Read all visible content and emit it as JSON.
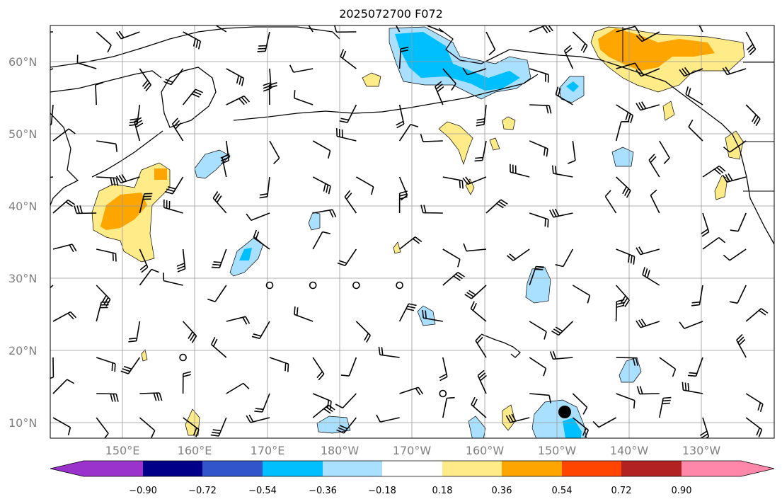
{
  "title": "2025072700 F072",
  "lat_labels": [
    "60°N",
    "50°N",
    "40°N",
    "30°N",
    "20°N",
    "10°N"
  ],
  "lon_labels": [
    "150°E",
    "160°E",
    "170°E",
    "180°W",
    "170°W",
    "160°W",
    "150°W",
    "140°W",
    "130°W"
  ],
  "colorbar": {
    "labels": [
      "−0.90",
      "−0.72",
      "−0.54",
      "−0.36",
      "−0.18",
      "0.18",
      "0.36",
      "0.54",
      "0.72",
      "0.90"
    ],
    "colors": [
      "#9933cc",
      "#000088",
      "#3355cc",
      "#00bfff",
      "#aae0ff",
      "#ffffff",
      "#ffeb88",
      "#ffa500",
      "#ff4500",
      "#b22222",
      "#ff88aa"
    ]
  },
  "colors": {
    "light_blue": "#aae0ff",
    "blue": "#00bfff",
    "yellow": "#ffeb88",
    "orange": "#ffa500",
    "gridline": "#999999"
  }
}
